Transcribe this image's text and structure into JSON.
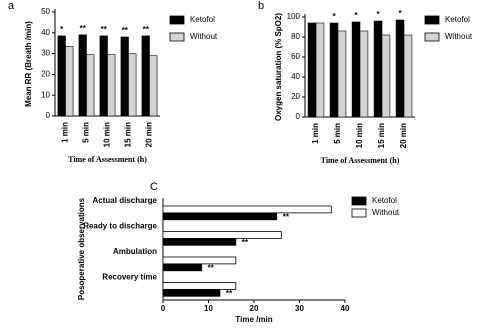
{
  "chart_data": [
    {
      "type": "bar",
      "orientation": "vertical",
      "panel": "a",
      "xlabel": "Time of Assessment (h)",
      "ylabel": "Mean RR (Breath /min)",
      "categories": [
        "1 min",
        "5 min",
        "10 min",
        "15 min",
        "20 min"
      ],
      "series": [
        {
          "name": "Ketofol",
          "color": "#000000",
          "values": [
            38.5,
            39,
            38.5,
            38,
            38.5
          ]
        },
        {
          "name": "Without",
          "color": "#d3d3d3",
          "values": [
            33.5,
            29.5,
            29.5,
            30,
            29
          ]
        }
      ],
      "annotations": [
        "*",
        "**",
        "**",
        "**",
        "**"
      ],
      "ylim": [
        0,
        50
      ],
      "yticks": [
        0,
        10,
        20,
        30,
        40,
        50
      ],
      "legend": "outside-right"
    },
    {
      "type": "bar",
      "orientation": "vertical",
      "panel": "b",
      "xlabel": "Time of Assessment (h)",
      "ylabel": "Oxygen saturation (% SpO2)",
      "categories": [
        "1 min",
        "5 min",
        "10 min",
        "15 min",
        "20 min"
      ],
      "series": [
        {
          "name": "Ketofol",
          "color": "#000000",
          "values": [
            94,
            94,
            95,
            96,
            97
          ]
        },
        {
          "name": "Without",
          "color": "#d3d3d3",
          "values": [
            94,
            86,
            86,
            82,
            82
          ]
        }
      ],
      "annotations": [
        null,
        "*",
        "*",
        "*",
        "*"
      ],
      "ylim": [
        0,
        100
      ],
      "yticks": [
        0,
        20,
        40,
        60,
        80,
        100
      ],
      "legend": "outside-right"
    },
    {
      "type": "bar",
      "orientation": "horizontal",
      "panel": "C",
      "xlabel": "Time /min",
      "ylabel": "Posoperative observations",
      "categories": [
        "Actual discharge",
        "Ready to discharge",
        "Ambulation",
        "Recovery time"
      ],
      "series": [
        {
          "name": "Ketofol",
          "color": "#000000",
          "values": [
            25,
            16,
            8.5,
            12.5
          ]
        },
        {
          "name": "Without",
          "color": "#ffffff",
          "values": [
            37,
            26,
            16,
            16
          ]
        }
      ],
      "annotations": [
        "**",
        "**",
        "**",
        "**"
      ],
      "xlim": [
        0,
        40
      ],
      "xticks": [
        0,
        10,
        20,
        30,
        40
      ],
      "legend": "outside-right"
    }
  ]
}
